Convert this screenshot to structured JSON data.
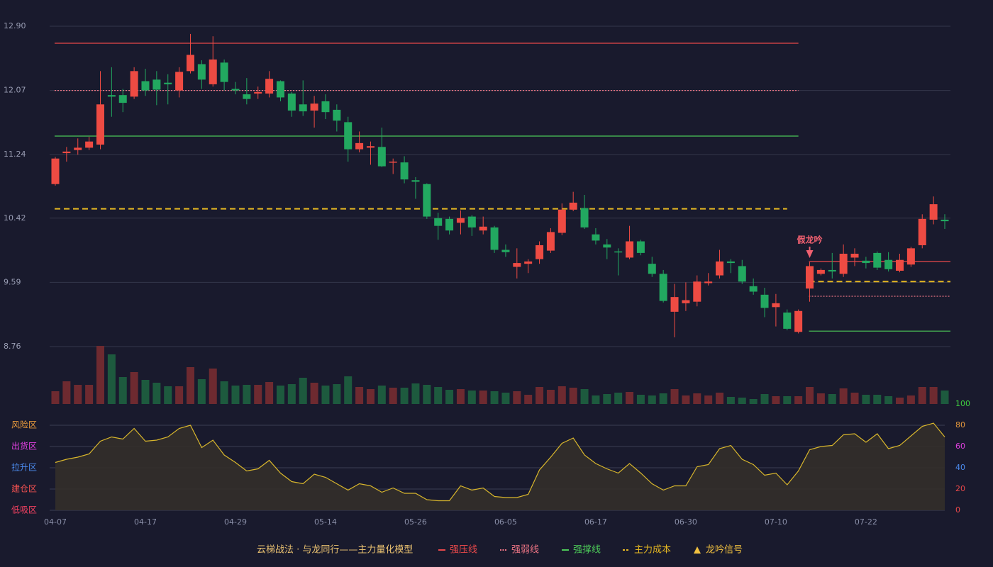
{
  "chart_data": [
    {
      "type": "candlestick",
      "title": "云梯战法 · 与龙同行——主力量化模型",
      "categories": [
        "04-07",
        null,
        null,
        null,
        null,
        null,
        null,
        null,
        "04-17",
        null,
        null,
        null,
        null,
        null,
        null,
        null,
        "04-29",
        null,
        null,
        null,
        null,
        null,
        null,
        null,
        "05-14",
        null,
        null,
        null,
        null,
        null,
        null,
        null,
        "05-26",
        null,
        null,
        null,
        null,
        null,
        null,
        null,
        "06-05",
        null,
        null,
        null,
        null,
        null,
        null,
        null,
        "06-17",
        null,
        null,
        null,
        null,
        null,
        null,
        null,
        "06-30",
        null,
        null,
        null,
        null,
        null,
        null,
        null,
        "07-10",
        null,
        null,
        null,
        null,
        null,
        null,
        null,
        "07-22",
        null,
        null,
        null,
        null,
        null,
        null,
        null
      ],
      "open": [
        10.86,
        11.26,
        11.3,
        11.33,
        11.37,
        12.01,
        12.01,
        11.99,
        12.19,
        12.21,
        12.17,
        12.07,
        12.32,
        12.41,
        12.15,
        12.43,
        12.09,
        12.02,
        12.03,
        12.03,
        12.19,
        12.03,
        11.89,
        11.81,
        11.93,
        11.82,
        11.66,
        11.31,
        11.33,
        11.34,
        11.14,
        11.14,
        10.91,
        10.86,
        10.42,
        10.41,
        10.36,
        10.44,
        10.26,
        10.3,
        10.01,
        9.79,
        9.83,
        9.89,
        10.0,
        10.23,
        10.53,
        10.55,
        10.21,
        10.08,
        9.99,
        9.91,
        10.12,
        9.83,
        9.7,
        9.21,
        9.32,
        9.34,
        9.58,
        9.68,
        9.86,
        9.8,
        9.54,
        9.43,
        9.27,
        9.2,
        8.95,
        9.51,
        9.7,
        9.75,
        9.7,
        9.91,
        9.87,
        9.97,
        9.88,
        9.74,
        9.82,
        10.07,
        10.4,
        10.4
      ],
      "high": [
        11.21,
        11.34,
        11.45,
        11.47,
        12.32,
        12.37,
        12.09,
        12.37,
        12.35,
        12.32,
        12.28,
        12.37,
        12.8,
        12.46,
        12.77,
        12.47,
        12.18,
        12.23,
        12.12,
        12.32,
        12.2,
        12.05,
        12.2,
        12.0,
        12.02,
        11.89,
        11.73,
        11.54,
        11.41,
        11.59,
        11.19,
        11.22,
        10.95,
        10.87,
        10.49,
        10.44,
        10.52,
        10.46,
        10.44,
        10.32,
        10.08,
        10.03,
        9.89,
        10.12,
        10.29,
        10.61,
        10.76,
        10.72,
        10.29,
        10.15,
        10.03,
        10.32,
        10.14,
        9.92,
        9.75,
        9.57,
        9.59,
        9.68,
        9.71,
        10.01,
        9.89,
        9.88,
        9.64,
        9.52,
        9.44,
        9.24,
        9.24,
        9.85,
        9.77,
        9.97,
        10.08,
        10.03,
        9.92,
        9.99,
        9.98,
        9.96,
        10.05,
        10.47,
        10.7,
        10.47
      ],
      "low": [
        10.84,
        11.15,
        11.24,
        11.3,
        11.31,
        11.73,
        11.79,
        11.96,
        12.0,
        11.88,
        11.89,
        11.98,
        12.29,
        12.09,
        12.12,
        12.07,
        12.02,
        11.89,
        11.96,
        11.98,
        11.93,
        11.73,
        11.74,
        11.59,
        11.7,
        11.54,
        11.15,
        11.27,
        11.11,
        11.08,
        10.99,
        10.87,
        10.67,
        10.41,
        10.14,
        10.21,
        10.21,
        10.19,
        10.21,
        9.97,
        9.92,
        9.64,
        9.71,
        9.83,
        9.97,
        10.2,
        10.51,
        10.28,
        10.08,
        9.89,
        9.68,
        9.89,
        9.94,
        9.66,
        9.33,
        8.88,
        9.22,
        9.28,
        9.55,
        9.64,
        9.71,
        9.57,
        9.43,
        9.14,
        9.02,
        8.97,
        8.93,
        9.34,
        9.68,
        9.64,
        9.66,
        9.8,
        9.77,
        9.75,
        9.73,
        9.72,
        9.79,
        10.03,
        10.34,
        10.28
      ],
      "close": [
        11.19,
        11.28,
        11.33,
        11.41,
        11.89,
        11.99,
        11.91,
        12.32,
        12.07,
        12.08,
        12.15,
        12.31,
        12.53,
        12.21,
        12.47,
        12.18,
        12.07,
        11.96,
        12.05,
        12.22,
        11.98,
        11.81,
        11.8,
        11.9,
        11.79,
        11.68,
        11.31,
        11.39,
        11.35,
        11.09,
        11.15,
        10.92,
        10.89,
        10.44,
        10.32,
        10.26,
        10.42,
        10.3,
        10.31,
        10.01,
        9.98,
        9.84,
        9.86,
        10.07,
        10.24,
        10.53,
        10.62,
        10.3,
        10.13,
        10.04,
        9.98,
        10.12,
        9.97,
        9.7,
        9.35,
        9.4,
        9.36,
        9.6,
        9.6,
        9.86,
        9.84,
        9.6,
        9.47,
        9.26,
        9.32,
        8.99,
        9.22,
        9.8,
        9.75,
        9.73,
        9.96,
        9.96,
        9.84,
        9.78,
        9.76,
        9.88,
        10.03,
        10.41,
        10.6,
        10.38
      ],
      "volume": [
        18,
        32,
        27,
        27,
        82,
        70,
        38,
        45,
        34,
        30,
        25,
        25,
        52,
        35,
        50,
        32,
        26,
        27,
        27,
        31,
        26,
        28,
        37,
        30,
        26,
        28,
        39,
        24,
        21,
        26,
        23,
        23,
        29,
        27,
        24,
        20,
        21,
        19,
        19,
        18,
        16,
        18,
        13,
        24,
        20,
        25,
        23,
        21,
        12,
        14,
        16,
        17,
        13,
        12,
        15,
        21,
        12,
        15,
        12,
        16,
        10,
        9,
        7,
        14,
        11,
        11,
        11,
        24,
        15,
        14,
        22,
        16,
        13,
        13,
        11,
        9,
        12,
        24,
        24,
        19
      ],
      "up_color": "#ee4b43",
      "down_color": "#22a860",
      "volume_up_color": "#6e2a30",
      "volume_down_color": "#1d5a3e",
      "ylim": [
        8.76,
        12.9
      ],
      "yticks": [
        {
          "value": 12.9,
          "label": "12.90"
        },
        12.07,
        11.24,
        10.42,
        9.59,
        8.76
      ],
      "grid": true,
      "levels": [
        {
          "name": "强压线",
          "color": "#e8484a",
          "style": "solid",
          "segments": [
            {
              "from": 0,
              "to": 66,
              "value": 12.68
            },
            {
              "from": 67,
              "to": 79,
              "value": 9.86
            }
          ]
        },
        {
          "name": "强弱线",
          "color": "#ec7484",
          "style": "dotted",
          "segments": [
            {
              "from": 0,
              "to": 66,
              "value": 12.07
            },
            {
              "from": 67,
              "to": 79,
              "value": 9.41
            }
          ]
        },
        {
          "name": "强撑线",
          "color": "#4cc858",
          "style": "solid",
          "segments": [
            {
              "from": 0,
              "to": 66,
              "value": 11.48
            },
            {
              "from": 67,
              "to": 79,
              "value": 8.96
            }
          ]
        },
        {
          "name": "主力成本",
          "color": "#e6b822",
          "style": "dashed",
          "segments": [
            {
              "from": 0,
              "to": 65,
              "value": 10.54
            },
            {
              "from": 67,
              "to": 79,
              "value": 9.6
            }
          ]
        }
      ],
      "signal_name": "龙吟信号",
      "signal_color": "#f0c040",
      "signals": [
        {
          "label": "假龙吟",
          "index": 67,
          "color": "#f06070"
        }
      ]
    },
    {
      "type": "area",
      "values": [
        45,
        48,
        50,
        53,
        65,
        69,
        67,
        77,
        65,
        66,
        69,
        77,
        80,
        59,
        66,
        52,
        45,
        37,
        39,
        47,
        35,
        27,
        25,
        34,
        31,
        25,
        19,
        25,
        23,
        17,
        21,
        16,
        16,
        10,
        9,
        9,
        23,
        19,
        21,
        13,
        12,
        12,
        15,
        38,
        50,
        63,
        68,
        52,
        44,
        39,
        35,
        44,
        35,
        25,
        19,
        23,
        23,
        41,
        43,
        58,
        61,
        48,
        43,
        33,
        35,
        24,
        37,
        57,
        60,
        61,
        71,
        72,
        64,
        72,
        58,
        61,
        70,
        79,
        82,
        69
      ],
      "color": "#d8b62c",
      "fill": "#332f2a",
      "ylim": [
        0,
        100
      ],
      "yticks": [
        0,
        20,
        40,
        60,
        80,
        100
      ],
      "ytick_colors": [
        "#e8484a",
        "#e8484a",
        "#4c8cf0",
        "#e040e0",
        "#e89a3c",
        "#40d040"
      ],
      "zones": [
        {
          "name": "风险区",
          "value": 80,
          "color": "#e89a3c"
        },
        {
          "name": "出货区",
          "value": 60,
          "color": "#e040e0"
        },
        {
          "name": "拉升区",
          "value": 40,
          "color": "#4c8cf0"
        },
        {
          "name": "建仓区",
          "value": 20,
          "color": "#f05050"
        },
        {
          "name": "低吸区",
          "value": 0,
          "color": "#f04060"
        }
      ]
    }
  ]
}
